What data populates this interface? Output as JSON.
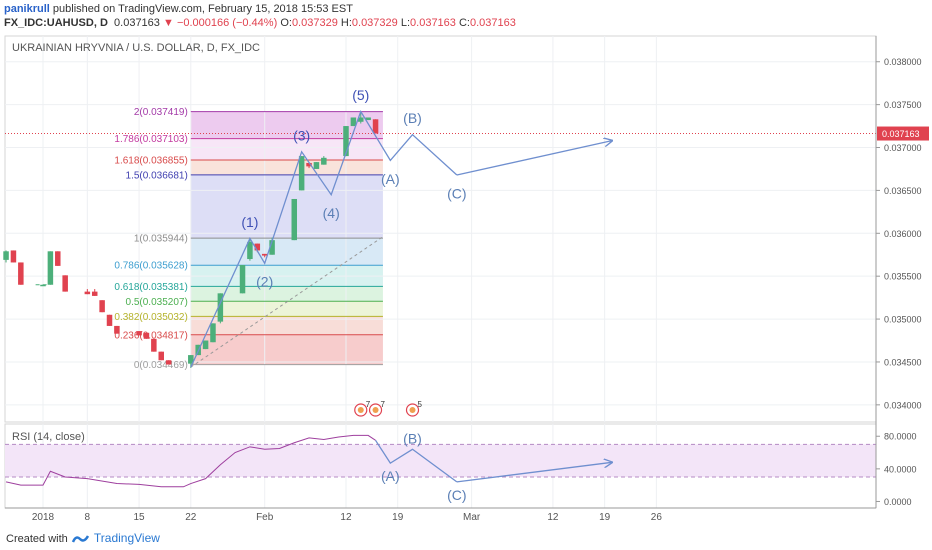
{
  "header": {
    "author": "panikrull",
    "published": "published on TradingView.com, February 15, 2018 15:53 EST",
    "symbol": "FX_IDC:UAHUSD, D",
    "last": "0.037163",
    "arrow": "▼",
    "change": "−0.000166 (−0.44%)",
    "o_label": "O:",
    "o": "0.037329",
    "h_label": "H:",
    "h": "0.037329",
    "l_label": "L:",
    "l": "0.037163",
    "c_label": "C:",
    "c": "0.037163"
  },
  "chart_title": "UKRAINIAN HRYVNIA / U.S. DOLLAR, D, FX_IDC",
  "rsi_title": "RSI (14, close)",
  "footer": {
    "created": "Created with",
    "brand": "TradingView"
  },
  "colors": {
    "up": "#4caf7a",
    "down": "#e0424f",
    "wave": "#6f8fcf",
    "rsi": "#9e3f9e",
    "last_price": "#e0424f"
  },
  "chart_data": {
    "type": "candlestick",
    "price_axis": {
      "min": 0.0338,
      "max": 0.0383,
      "ticks": [
        "0.038000",
        "0.037500",
        "0.037000",
        "0.036500",
        "0.036000",
        "0.035500",
        "0.035000",
        "0.034500",
        "0.034000"
      ]
    },
    "x_ticks": [
      {
        "label": "2018",
        "day": 0
      },
      {
        "label": "8",
        "day": 6
      },
      {
        "label": "15",
        "day": 13
      },
      {
        "label": "22",
        "day": 20
      },
      {
        "label": "Feb",
        "day": 30
      },
      {
        "label": "12",
        "day": 41
      },
      {
        "label": "19",
        "day": 48
      },
      {
        "label": "Mar",
        "day": 58
      },
      {
        "label": "12",
        "day": 69
      },
      {
        "label": "19",
        "day": 76
      },
      {
        "label": "26",
        "day": 83
      }
    ],
    "last_price": {
      "value": 0.037163,
      "label": "0.037163"
    },
    "candles": [
      {
        "d": -5,
        "o": 0.03569,
        "h": 0.0358,
        "l": 0.03566,
        "c": 0.03579
      },
      {
        "d": -4,
        "o": 0.0358,
        "h": 0.0358,
        "l": 0.03566,
        "c": 0.03566
      },
      {
        "d": -3,
        "o": 0.03566,
        "h": 0.03566,
        "l": 0.0354,
        "c": 0.0354
      },
      {
        "d": 0,
        "o": 0.0354,
        "h": 0.0354,
        "l": 0.0354,
        "c": 0.0354
      },
      {
        "d": 1,
        "o": 0.0354,
        "h": 0.03579,
        "l": 0.0354,
        "c": 0.03579
      },
      {
        "d": 2,
        "o": 0.03579,
        "h": 0.03579,
        "l": 0.03562,
        "c": 0.03562
      },
      {
        "d": 3,
        "o": 0.03551,
        "h": 0.03551,
        "l": 0.03532,
        "c": 0.03532
      },
      {
        "d": 6,
        "o": 0.03532,
        "h": 0.03535,
        "l": 0.03529,
        "c": 0.03529
      },
      {
        "d": 7,
        "o": 0.03532,
        "h": 0.03535,
        "l": 0.03527,
        "c": 0.03527
      },
      {
        "d": 8,
        "o": 0.03522,
        "h": 0.03522,
        "l": 0.03508,
        "c": 0.03508
      },
      {
        "d": 9,
        "o": 0.03505,
        "h": 0.03505,
        "l": 0.03492,
        "c": 0.03492
      },
      {
        "d": 10,
        "o": 0.03492,
        "h": 0.03492,
        "l": 0.03483,
        "c": 0.03483
      },
      {
        "d": 13,
        "o": 0.03486,
        "h": 0.03486,
        "l": 0.03481,
        "c": 0.03481
      },
      {
        "d": 14,
        "o": 0.03484,
        "h": 0.03484,
        "l": 0.03477,
        "c": 0.03477
      },
      {
        "d": 15,
        "o": 0.03477,
        "h": 0.03477,
        "l": 0.03462,
        "c": 0.03462
      },
      {
        "d": 16,
        "o": 0.03462,
        "h": 0.03462,
        "l": 0.03452,
        "c": 0.03452
      },
      {
        "d": 17,
        "o": 0.03452,
        "h": 0.03452,
        "l": 0.03447,
        "c": 0.03447
      },
      {
        "d": 20,
        "o": 0.03448,
        "h": 0.03458,
        "l": 0.03443,
        "c": 0.03458
      },
      {
        "d": 21,
        "o": 0.03458,
        "h": 0.0347,
        "l": 0.03458,
        "c": 0.0347
      },
      {
        "d": 22,
        "o": 0.03465,
        "h": 0.03475,
        "l": 0.03465,
        "c": 0.03475
      },
      {
        "d": 23,
        "o": 0.03473,
        "h": 0.03495,
        "l": 0.03473,
        "c": 0.03495
      },
      {
        "d": 24,
        "o": 0.03497,
        "h": 0.0353,
        "l": 0.03495,
        "c": 0.0353
      },
      {
        "d": 27,
        "o": 0.0353,
        "h": 0.03563,
        "l": 0.0353,
        "c": 0.03563
      },
      {
        "d": 28,
        "o": 0.0357,
        "h": 0.03594,
        "l": 0.03568,
        "c": 0.0359
      },
      {
        "d": 29,
        "o": 0.03588,
        "h": 0.03588,
        "l": 0.03578,
        "c": 0.0358
      },
      {
        "d": 30,
        "o": 0.03576,
        "h": 0.03576,
        "l": 0.03572,
        "c": 0.03574
      },
      {
        "d": 31,
        "o": 0.03575,
        "h": 0.03595,
        "l": 0.03575,
        "c": 0.03592
      },
      {
        "d": 34,
        "o": 0.03592,
        "h": 0.0364,
        "l": 0.03592,
        "c": 0.0364
      },
      {
        "d": 35,
        "o": 0.0365,
        "h": 0.0369,
        "l": 0.0365,
        "c": 0.0369
      },
      {
        "d": 36,
        "o": 0.03682,
        "h": 0.03682,
        "l": 0.03676,
        "c": 0.03678
      },
      {
        "d": 37,
        "o": 0.03675,
        "h": 0.03683,
        "l": 0.03675,
        "c": 0.03683
      },
      {
        "d": 38,
        "o": 0.0368,
        "h": 0.0369,
        "l": 0.0368,
        "c": 0.03688
      },
      {
        "d": 41,
        "o": 0.0369,
        "h": 0.03725,
        "l": 0.0369,
        "c": 0.03725
      },
      {
        "d": 42,
        "o": 0.03725,
        "h": 0.03735,
        "l": 0.03725,
        "c": 0.03735
      },
      {
        "d": 43,
        "o": 0.0373,
        "h": 0.03742,
        "l": 0.03728,
        "c": 0.03735
      },
      {
        "d": 44,
        "o": 0.03732,
        "h": 0.03735,
        "l": 0.03732,
        "c": 0.03735
      },
      {
        "d": 45,
        "o": 0.037329,
        "h": 0.037329,
        "l": 0.037163,
        "c": 0.037163
      }
    ],
    "fib": [
      {
        "label": "0(0.034469)",
        "value": 0.034469,
        "color": "#9e9e9e",
        "fill": "#f3b6b6"
      },
      {
        "label": "0.236(0.034817)",
        "value": 0.034817,
        "color": "#d84a4a",
        "fill": "#f5cfc8"
      },
      {
        "label": "0.382(0.035032)",
        "value": 0.035032,
        "color": "#b5b32c",
        "fill": "#e4efc8"
      },
      {
        "label": "0.5(0.035207)",
        "value": 0.035207,
        "color": "#4caf50",
        "fill": "#cdeed3"
      },
      {
        "label": "0.618(0.035381)",
        "value": 0.035381,
        "color": "#26a69a",
        "fill": "#c6ecea"
      },
      {
        "label": "0.786(0.035628)",
        "value": 0.035628,
        "color": "#3d9ecf",
        "fill": "#c7dff2"
      },
      {
        "label": "1(0.035944)",
        "value": 0.035944,
        "color": "#8d8d8d",
        "fill": "#cfd0f2"
      },
      {
        "label": "1.5(0.036681)",
        "value": 0.036681,
        "color": "#3f3fb0",
        "fill": "#f7d7cc"
      },
      {
        "label": "1.618(0.036855)",
        "value": 0.036855,
        "color": "#d84a4a",
        "fill": "#f3dbf3"
      },
      {
        "label": "1.786(0.037103)",
        "value": 0.037103,
        "color": "#c33aa0",
        "fill": "#e5b5e8"
      },
      {
        "label": "2(0.037419)",
        "value": 0.037419,
        "color": "#a33aa8"
      }
    ],
    "fib_range": {
      "d_start": 20,
      "d_end": 46
    },
    "trend_line": [
      {
        "d": 20,
        "v": 0.03444
      },
      {
        "d": 46,
        "v": 0.03596
      }
    ],
    "waves": [
      {
        "d": 20,
        "v": 0.03444
      },
      {
        "d": 28,
        "v": 0.03594
      },
      {
        "d": 30,
        "v": 0.03565
      },
      {
        "d": 35,
        "v": 0.03695
      },
      {
        "d": 39,
        "v": 0.03645
      },
      {
        "d": 43,
        "v": 0.03742
      },
      {
        "d": 47,
        "v": 0.03685
      },
      {
        "d": 50,
        "v": 0.03715
      },
      {
        "d": 56,
        "v": 0.03668
      }
    ],
    "wave_arrow": [
      {
        "d": 56,
        "v": 0.03668
      },
      {
        "d": 77,
        "v": 0.03708
      }
    ],
    "wave_labels": [
      {
        "label": "(1)",
        "d": 28,
        "v": 0.03598,
        "pos": "above",
        "color": "#3f51b5"
      },
      {
        "label": "(2)",
        "d": 30,
        "v": 0.03561,
        "pos": "below",
        "color": "#5b7fb5"
      },
      {
        "label": "(3)",
        "d": 35,
        "v": 0.03699,
        "pos": "above",
        "color": "#3f51b5"
      },
      {
        "label": "(4)",
        "d": 39,
        "v": 0.03641,
        "pos": "below",
        "color": "#5b7fb5"
      },
      {
        "label": "(5)",
        "d": 43,
        "v": 0.03746,
        "pos": "above",
        "color": "#3f51b5"
      },
      {
        "label": "(A)",
        "d": 47,
        "v": 0.03681,
        "pos": "below",
        "color": "#5b7fb5"
      },
      {
        "label": "(B)",
        "d": 50,
        "v": 0.03719,
        "pos": "above",
        "color": "#5b7fb5"
      },
      {
        "label": "(C)",
        "d": 56,
        "v": 0.03664,
        "pos": "below",
        "color": "#5b7fb5"
      }
    ],
    "events": [
      {
        "d": 43,
        "label": "7"
      },
      {
        "d": 45,
        "label": "7"
      },
      {
        "d": 50,
        "label": "5"
      }
    ],
    "rsi": {
      "min": -8,
      "max": 95,
      "ticks": [
        "80.0000",
        "40.0000",
        "0.0000"
      ],
      "tick_values": [
        80,
        40,
        0
      ],
      "band": [
        30,
        70
      ],
      "values": [
        {
          "d": -5,
          "v": 24
        },
        {
          "d": -3,
          "v": 20
        },
        {
          "d": 0,
          "v": 20
        },
        {
          "d": 1,
          "v": 37
        },
        {
          "d": 3,
          "v": 30
        },
        {
          "d": 6,
          "v": 28
        },
        {
          "d": 10,
          "v": 22
        },
        {
          "d": 13,
          "v": 21
        },
        {
          "d": 16,
          "v": 18
        },
        {
          "d": 19,
          "v": 18
        },
        {
          "d": 20,
          "v": 22
        },
        {
          "d": 22,
          "v": 28
        },
        {
          "d": 24,
          "v": 45
        },
        {
          "d": 26,
          "v": 60
        },
        {
          "d": 28,
          "v": 67
        },
        {
          "d": 30,
          "v": 64
        },
        {
          "d": 32,
          "v": 65
        },
        {
          "d": 34,
          "v": 72
        },
        {
          "d": 36,
          "v": 78
        },
        {
          "d": 38,
          "v": 76
        },
        {
          "d": 40,
          "v": 79
        },
        {
          "d": 42,
          "v": 81
        },
        {
          "d": 44,
          "v": 81
        },
        {
          "d": 45,
          "v": 75
        }
      ],
      "waves": [
        {
          "d": 45,
          "v": 75
        },
        {
          "d": 47,
          "v": 47
        },
        {
          "d": 50,
          "v": 64
        },
        {
          "d": 56,
          "v": 24
        }
      ],
      "arrow": [
        {
          "d": 56,
          "v": 24
        },
        {
          "d": 77,
          "v": 48
        }
      ],
      "labels": [
        {
          "label": "(A)",
          "d": 47,
          "v": 47,
          "pos": "below"
        },
        {
          "label": "(B)",
          "d": 50,
          "v": 64,
          "pos": "above"
        },
        {
          "label": "(C)",
          "d": 56,
          "v": 24,
          "pos": "below"
        }
      ]
    }
  }
}
